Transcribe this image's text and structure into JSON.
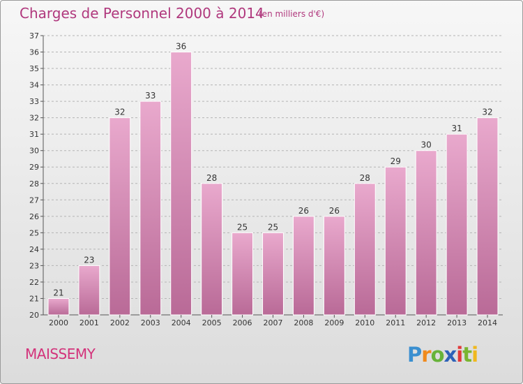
{
  "header": {
    "title": "Charges de Personnel 2000 à 2014",
    "subtitle": "(en milliers d'€)"
  },
  "footer": {
    "commune": "MAISSEMY",
    "logo_text": "Proxiti"
  },
  "colors": {
    "bar_top": "#e9a9cd",
    "bar_bottom": "#b96a97",
    "title": "#b0387d",
    "commune": "#d3337b",
    "grid": "#b4b4b4",
    "axis": "#555555"
  },
  "chart_data": {
    "type": "bar",
    "title": "Charges de Personnel 2000 à 2014",
    "subtitle": "(en milliers d'€)",
    "xlabel": "",
    "ylabel": "",
    "categories": [
      "2000",
      "2001",
      "2002",
      "2003",
      "2004",
      "2005",
      "2006",
      "2007",
      "2008",
      "2009",
      "2010",
      "2011",
      "2012",
      "2013",
      "2014"
    ],
    "values": [
      21,
      23,
      32,
      33,
      36,
      28,
      25,
      25,
      26,
      26,
      28,
      29,
      30,
      31,
      32
    ],
    "ylim": [
      20,
      37
    ],
    "yticks": [
      20,
      21,
      22,
      23,
      24,
      25,
      26,
      27,
      28,
      29,
      30,
      31,
      32,
      33,
      34,
      35,
      36,
      37
    ],
    "grid": "horizontal-dashed",
    "data_labels": true
  }
}
